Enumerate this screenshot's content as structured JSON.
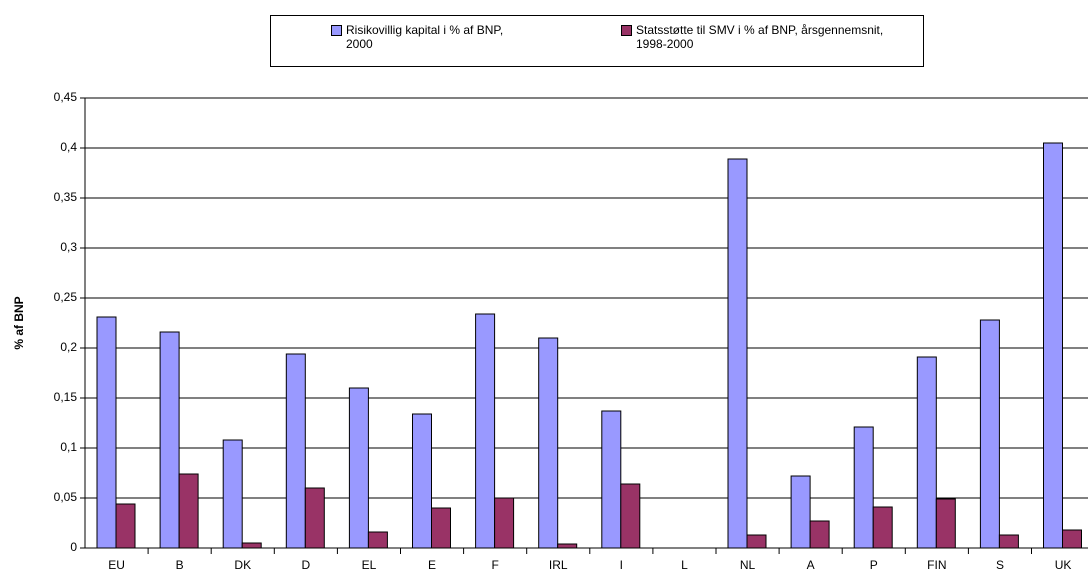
{
  "chart_data": {
    "type": "bar",
    "y_label": "% af BNP",
    "categories": [
      "EU",
      "B",
      "DK",
      "D",
      "EL",
      "E",
      "F",
      "IRL",
      "I",
      "L",
      "NL",
      "A",
      "P",
      "FIN",
      "S",
      "UK"
    ],
    "series": [
      {
        "name": "Risikovillig kapital i % af BNP, 2000",
        "color": "#9999ff",
        "values": [
          0.231,
          0.216,
          0.108,
          0.194,
          0.16,
          0.134,
          0.234,
          0.21,
          0.137,
          null,
          0.389,
          0.072,
          0.121,
          0.191,
          0.228,
          0.405
        ]
      },
      {
        "name": "Statsstøtte til SMV i % af BNP, årsgennemsnit, 1998-2000",
        "color": "#993366",
        "values": [
          0.044,
          0.074,
          0.005,
          0.06,
          0.016,
          0.04,
          0.05,
          0.004,
          0.064,
          null,
          0.013,
          0.027,
          0.041,
          0.049,
          0.013,
          0.018
        ]
      }
    ],
    "ylim": [
      0,
      0.45
    ],
    "yticks": [
      0,
      {
        "value": 0.05,
        "label": "0,05"
      },
      {
        "value": 0.1,
        "label": "0,1"
      },
      {
        "value": 0.15,
        "label": "0,15"
      },
      {
        "value": 0.2,
        "label": "0,2"
      },
      {
        "value": 0.25,
        "label": "0,25"
      },
      {
        "value": 0.3,
        "label": "0,3"
      },
      {
        "value": 0.35,
        "label": "0,35"
      },
      {
        "value": 0.4,
        "label": "0,4"
      },
      {
        "value": 0.45,
        "label": "0,45"
      }
    ],
    "grid": true
  }
}
